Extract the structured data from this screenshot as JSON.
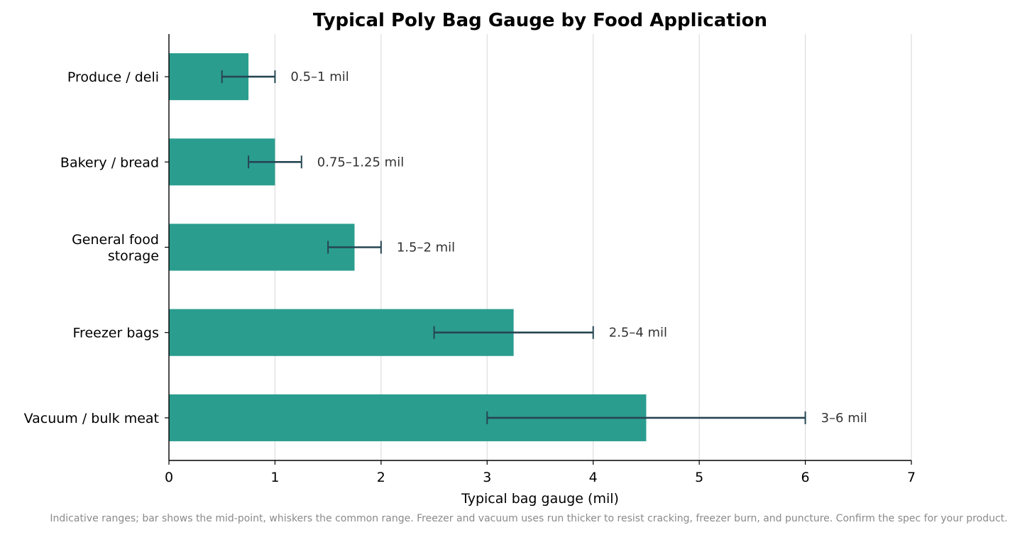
{
  "chart_data": {
    "type": "bar",
    "orientation": "horizontal",
    "title": "Typical Poly Bag Gauge by Food Application",
    "xlabel": "Typical bag gauge (mil)",
    "ylabel": "",
    "xlim": [
      0,
      7
    ],
    "xticks": [
      "0",
      "1",
      "2",
      "3",
      "4",
      "5",
      "6",
      "7"
    ],
    "grid": "vertical",
    "categories": [
      [
        "Produce / deli"
      ],
      [
        "Bakery / bread"
      ],
      [
        "General food",
        "storage"
      ],
      [
        "Freezer bags"
      ],
      [
        "Vacuum / bulk meat"
      ]
    ],
    "values": [
      0.75,
      1.0,
      1.75,
      3.25,
      4.5
    ],
    "range_low": [
      0.5,
      0.75,
      1.5,
      2.5,
      3.0
    ],
    "range_high": [
      1.0,
      1.25,
      2.0,
      4.0,
      6.0
    ],
    "range_labels": [
      "0.5–1 mil",
      "0.75–1.25 mil",
      "1.5–2 mil",
      "2.5–4 mil",
      "3–6 mil"
    ],
    "colors": {
      "bar": "#2a9d8f",
      "whisker": "#264653",
      "grid": "#dddddd",
      "axis": "#000000"
    }
  },
  "footnote": "Indicative ranges; bar shows the mid-point, whiskers the common range. Freezer and vacuum uses run thicker to resist cracking, freezer burn, and puncture. Confirm the spec for your product."
}
